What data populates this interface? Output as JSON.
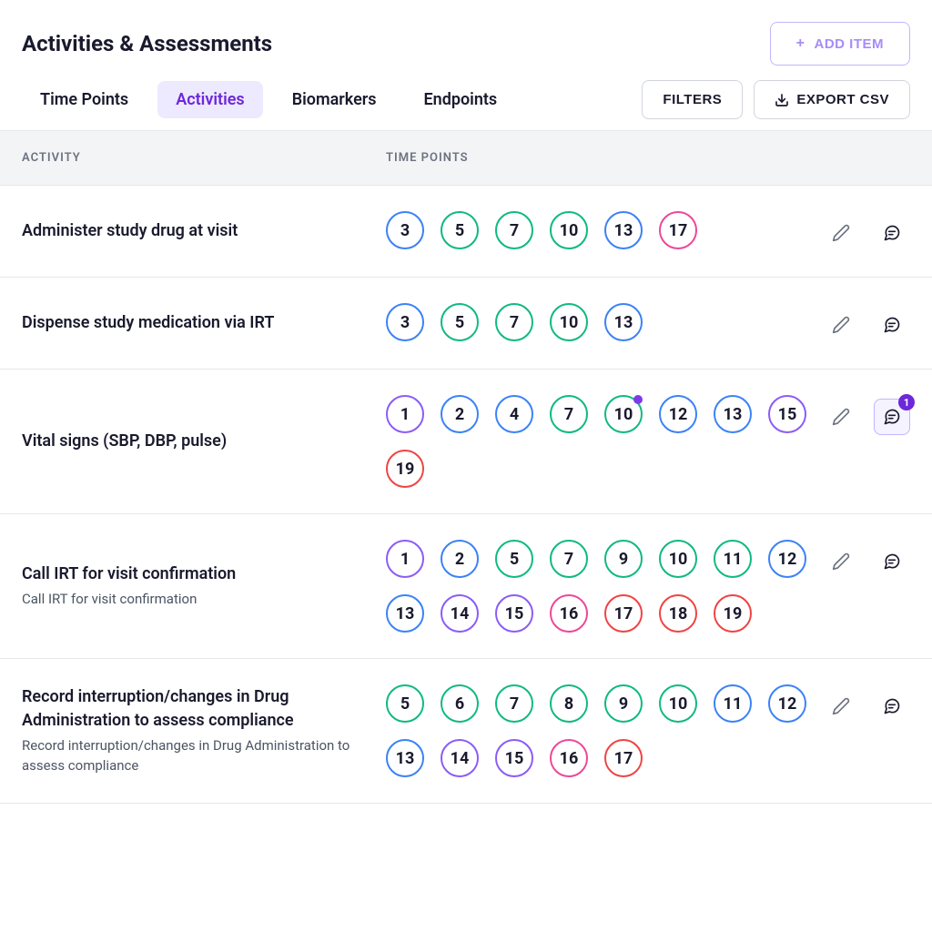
{
  "header": {
    "title": "Activities & Assessments",
    "add_item_label": "ADD ITEM"
  },
  "tabs": [
    {
      "label": "Time Points",
      "active": false
    },
    {
      "label": "Activities",
      "active": true
    },
    {
      "label": "Biomarkers",
      "active": false
    },
    {
      "label": "Endpoints",
      "active": false
    }
  ],
  "toolbar": {
    "filters_label": "FILTERS",
    "export_label": "EXPORT CSV"
  },
  "columns": {
    "activity": "ACTIVITY",
    "timepoints": "TIME POINTS"
  },
  "colors": {
    "purple": "#8b5cf6",
    "blue": "#3b82f6",
    "teal": "#10b981",
    "pink": "#ec4899",
    "red": "#ef4444",
    "lavender": "#a78bfa",
    "accent": "#6d28d9",
    "tab_active_bg": "#ede9fe",
    "border": "#e5e7eb",
    "text": "#1a1a2e",
    "muted": "#6b7280"
  },
  "rows": [
    {
      "title": "Administer study drug at visit",
      "subtitle": "",
      "comment_count": 0,
      "timepoints": [
        {
          "n": "3",
          "color": "#3b82f6"
        },
        {
          "n": "5",
          "color": "#10b981"
        },
        {
          "n": "7",
          "color": "#10b981"
        },
        {
          "n": "10",
          "color": "#10b981"
        },
        {
          "n": "13",
          "color": "#3b82f6"
        },
        {
          "n": "17",
          "color": "#ec4899"
        }
      ]
    },
    {
      "title": "Dispense study medication via IRT",
      "subtitle": "",
      "comment_count": 0,
      "timepoints": [
        {
          "n": "3",
          "color": "#3b82f6"
        },
        {
          "n": "5",
          "color": "#10b981"
        },
        {
          "n": "7",
          "color": "#10b981"
        },
        {
          "n": "10",
          "color": "#10b981"
        },
        {
          "n": "13",
          "color": "#3b82f6"
        }
      ]
    },
    {
      "title": "Vital signs (SBP, DBP, pulse)",
      "subtitle": "",
      "comment_count": 1,
      "timepoints": [
        {
          "n": "1",
          "color": "#8b5cf6"
        },
        {
          "n": "2",
          "color": "#3b82f6"
        },
        {
          "n": "4",
          "color": "#3b82f6"
        },
        {
          "n": "7",
          "color": "#10b981"
        },
        {
          "n": "10",
          "color": "#10b981",
          "dot": true
        },
        {
          "n": "12",
          "color": "#3b82f6"
        },
        {
          "n": "13",
          "color": "#3b82f6"
        },
        {
          "n": "15",
          "color": "#8b5cf6"
        },
        {
          "n": "19",
          "color": "#ef4444"
        }
      ]
    },
    {
      "title": "Call IRT for visit confirmation",
      "subtitle": "Call IRT for visit confirmation",
      "comment_count": 0,
      "timepoints": [
        {
          "n": "1",
          "color": "#8b5cf6"
        },
        {
          "n": "2",
          "color": "#3b82f6"
        },
        {
          "n": "5",
          "color": "#10b981"
        },
        {
          "n": "7",
          "color": "#10b981"
        },
        {
          "n": "9",
          "color": "#10b981"
        },
        {
          "n": "10",
          "color": "#10b981"
        },
        {
          "n": "11",
          "color": "#10b981"
        },
        {
          "n": "12",
          "color": "#3b82f6"
        },
        {
          "n": "13",
          "color": "#3b82f6"
        },
        {
          "n": "14",
          "color": "#8b5cf6"
        },
        {
          "n": "15",
          "color": "#8b5cf6"
        },
        {
          "n": "16",
          "color": "#ec4899"
        },
        {
          "n": "17",
          "color": "#ef4444"
        },
        {
          "n": "18",
          "color": "#ef4444"
        },
        {
          "n": "19",
          "color": "#ef4444"
        }
      ]
    },
    {
      "title": "Record interruption/changes in Drug Administration to assess compliance",
      "subtitle": "Record interruption/changes in Drug Administration to assess compliance",
      "comment_count": 0,
      "timepoints": [
        {
          "n": "5",
          "color": "#10b981"
        },
        {
          "n": "6",
          "color": "#10b981"
        },
        {
          "n": "7",
          "color": "#10b981"
        },
        {
          "n": "8",
          "color": "#10b981"
        },
        {
          "n": "9",
          "color": "#10b981"
        },
        {
          "n": "10",
          "color": "#10b981"
        },
        {
          "n": "11",
          "color": "#3b82f6"
        },
        {
          "n": "12",
          "color": "#3b82f6"
        },
        {
          "n": "13",
          "color": "#3b82f6"
        },
        {
          "n": "14",
          "color": "#8b5cf6"
        },
        {
          "n": "15",
          "color": "#8b5cf6"
        },
        {
          "n": "16",
          "color": "#ec4899"
        },
        {
          "n": "17",
          "color": "#ef4444"
        }
      ]
    }
  ]
}
